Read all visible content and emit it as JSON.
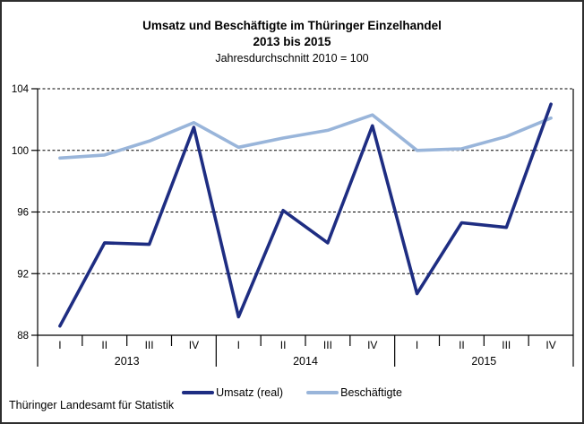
{
  "title": {
    "line1": "Umsatz und Beschäftigte im Thüringer Einzelhandel",
    "line2": "2013 bis 2015",
    "subtitle": "Jahresdurchschnitt 2010 = 100"
  },
  "footer": {
    "source": "Thüringer Landesamt für Statistik"
  },
  "legend": [
    {
      "label": "Umsatz (real)",
      "color": "#1e2d82"
    },
    {
      "label": "Beschäftigte",
      "color": "#99b5da"
    }
  ],
  "colors": {
    "umsatz_line": "#1e2d82",
    "beschaeftigte_line": "#99b5da",
    "axis": "#000000",
    "grid": "#000000"
  },
  "chart_data": {
    "type": "line",
    "title": "Umsatz und Beschäftigte im Thüringer Einzelhandel 2013 bis 2015",
    "subtitle": "Jahresdurchschnitt 2010 = 100",
    "index_note": "Jahresdurchschnitt 2010 = 100",
    "quarter_labels": [
      "I",
      "II",
      "III",
      "IV",
      "I",
      "II",
      "III",
      "IV",
      "I",
      "II",
      "III",
      "IV"
    ],
    "years": [
      "2013",
      "2014",
      "2015"
    ],
    "quarters_per_year": 4,
    "series": [
      {
        "name": "Umsatz (real)",
        "color": "#1e2d82",
        "values": [
          88.6,
          94.0,
          93.9,
          101.5,
          89.2,
          96.1,
          94.0,
          101.6,
          90.7,
          95.3,
          95.0,
          103.0
        ]
      },
      {
        "name": "Beschäftigte",
        "color": "#99b5da",
        "values": [
          99.5,
          99.7,
          100.6,
          101.8,
          100.2,
          100.8,
          101.3,
          102.3,
          100.0,
          100.1,
          100.9,
          102.1
        ]
      }
    ],
    "y_axis": {
      "min": 88,
      "max": 104,
      "step": 4,
      "ticks": [
        88,
        92,
        96,
        100,
        104
      ]
    },
    "grid": "horizontal-dashed",
    "legend_position": "bottom"
  }
}
